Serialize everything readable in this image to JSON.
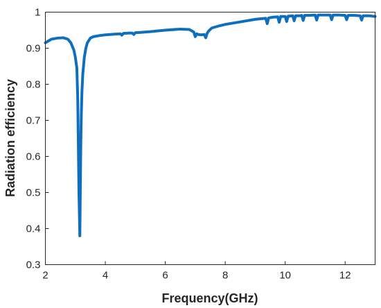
{
  "chart_data": {
    "type": "line",
    "title": "",
    "xlabel": "Frequency(GHz)",
    "ylabel": "Radiation efficiency",
    "xlim": [
      2,
      13
    ],
    "ylim": [
      0.3,
      1
    ],
    "xticks": [
      2,
      4,
      6,
      8,
      10,
      12
    ],
    "yticks": [
      0.3,
      0.4,
      0.5,
      0.6,
      0.7,
      0.8,
      0.9,
      1
    ],
    "xtick_labels": [
      "2",
      "4",
      "6",
      "8",
      "10",
      "12"
    ],
    "ytick_labels": [
      "0.3",
      "0.4",
      "0.5",
      "0.6",
      "0.7",
      "0.8",
      "0.9",
      "1"
    ],
    "grid": false,
    "legend": "none",
    "line_color": "#0f6fbd",
    "series": [
      {
        "x": [
          2.0,
          2.2,
          2.4,
          2.6,
          2.75,
          2.85,
          2.95,
          3.0,
          3.05,
          3.08,
          3.12,
          3.15,
          3.18,
          3.2,
          3.22,
          3.25,
          3.3,
          3.35,
          3.4,
          3.5,
          3.6,
          3.8,
          4.0,
          4.3,
          4.5,
          4.55,
          4.6,
          4.8,
          4.9,
          4.95,
          5.0,
          5.2,
          5.5,
          6.0,
          6.5,
          6.8,
          6.95,
          7.0,
          7.05,
          7.1,
          7.2,
          7.3,
          7.35,
          7.4,
          7.45,
          7.55,
          7.8,
          8.0,
          8.5,
          9.0,
          9.35,
          9.4,
          9.45,
          9.6,
          9.75,
          9.8,
          9.85,
          10.0,
          10.05,
          10.1,
          10.15,
          10.25,
          10.3,
          10.35,
          10.5,
          10.55,
          10.6,
          10.65,
          10.8,
          11.0,
          11.05,
          11.1,
          11.3,
          11.5,
          11.55,
          11.6,
          11.8,
          12.0,
          12.05,
          12.1,
          12.3,
          12.5,
          12.55,
          12.6,
          12.8,
          13.0
        ],
        "y": [
          0.915,
          0.925,
          0.928,
          0.929,
          0.925,
          0.915,
          0.895,
          0.875,
          0.845,
          0.76,
          0.5,
          0.38,
          0.62,
          0.72,
          0.78,
          0.83,
          0.875,
          0.9,
          0.915,
          0.928,
          0.932,
          0.935,
          0.937,
          0.939,
          0.94,
          0.936,
          0.941,
          0.942,
          0.942,
          0.938,
          0.943,
          0.944,
          0.946,
          0.95,
          0.953,
          0.952,
          0.945,
          0.932,
          0.94,
          0.938,
          0.937,
          0.938,
          0.929,
          0.942,
          0.948,
          0.956,
          0.962,
          0.966,
          0.973,
          0.98,
          0.983,
          0.968,
          0.984,
          0.986,
          0.987,
          0.972,
          0.988,
          0.988,
          0.974,
          0.989,
          0.989,
          0.99,
          0.976,
          0.99,
          0.99,
          0.991,
          0.977,
          0.991,
          0.991,
          0.992,
          0.978,
          0.992,
          0.992,
          0.992,
          0.979,
          0.992,
          0.992,
          0.991,
          0.979,
          0.991,
          0.991,
          0.99,
          0.978,
          0.99,
          0.99,
          0.988
        ]
      }
    ]
  }
}
